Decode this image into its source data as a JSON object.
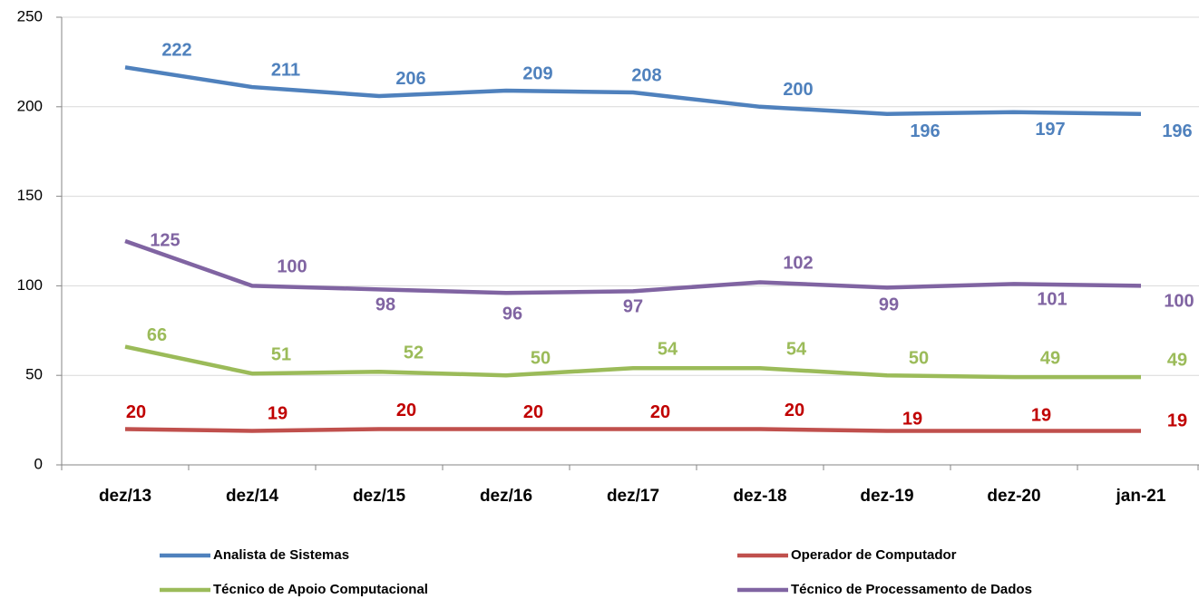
{
  "chart_data": {
    "type": "line",
    "categories": [
      "dez/13",
      "dez/14",
      "dez/15",
      "dez/16",
      "dez/17",
      "dez-18",
      "dez-19",
      "dez-20",
      "jan-21"
    ],
    "series": [
      {
        "name": "Analista de Sistemas",
        "color": "#4f81bd",
        "values": [
          222,
          211,
          206,
          209,
          208,
          200,
          196,
          197,
          196
        ]
      },
      {
        "name": "Operador de Computador",
        "color": "#c0504d",
        "values": [
          20,
          19,
          20,
          20,
          20,
          20,
          19,
          19,
          19
        ]
      },
      {
        "name": "Técnico de Apoio Computacional",
        "color": "#9bbb59",
        "values": [
          66,
          51,
          52,
          50,
          54,
          54,
          50,
          49,
          49
        ]
      },
      {
        "name": "Técnico de Processamento de Dados",
        "color": "#8064a2",
        "values": [
          125,
          100,
          98,
          96,
          97,
          102,
          99,
          101,
          100
        ]
      }
    ],
    "ylim": [
      0,
      250
    ],
    "yticks": [
      0,
      50,
      100,
      150,
      200,
      250
    ],
    "grid": true,
    "legend": "bottom"
  }
}
